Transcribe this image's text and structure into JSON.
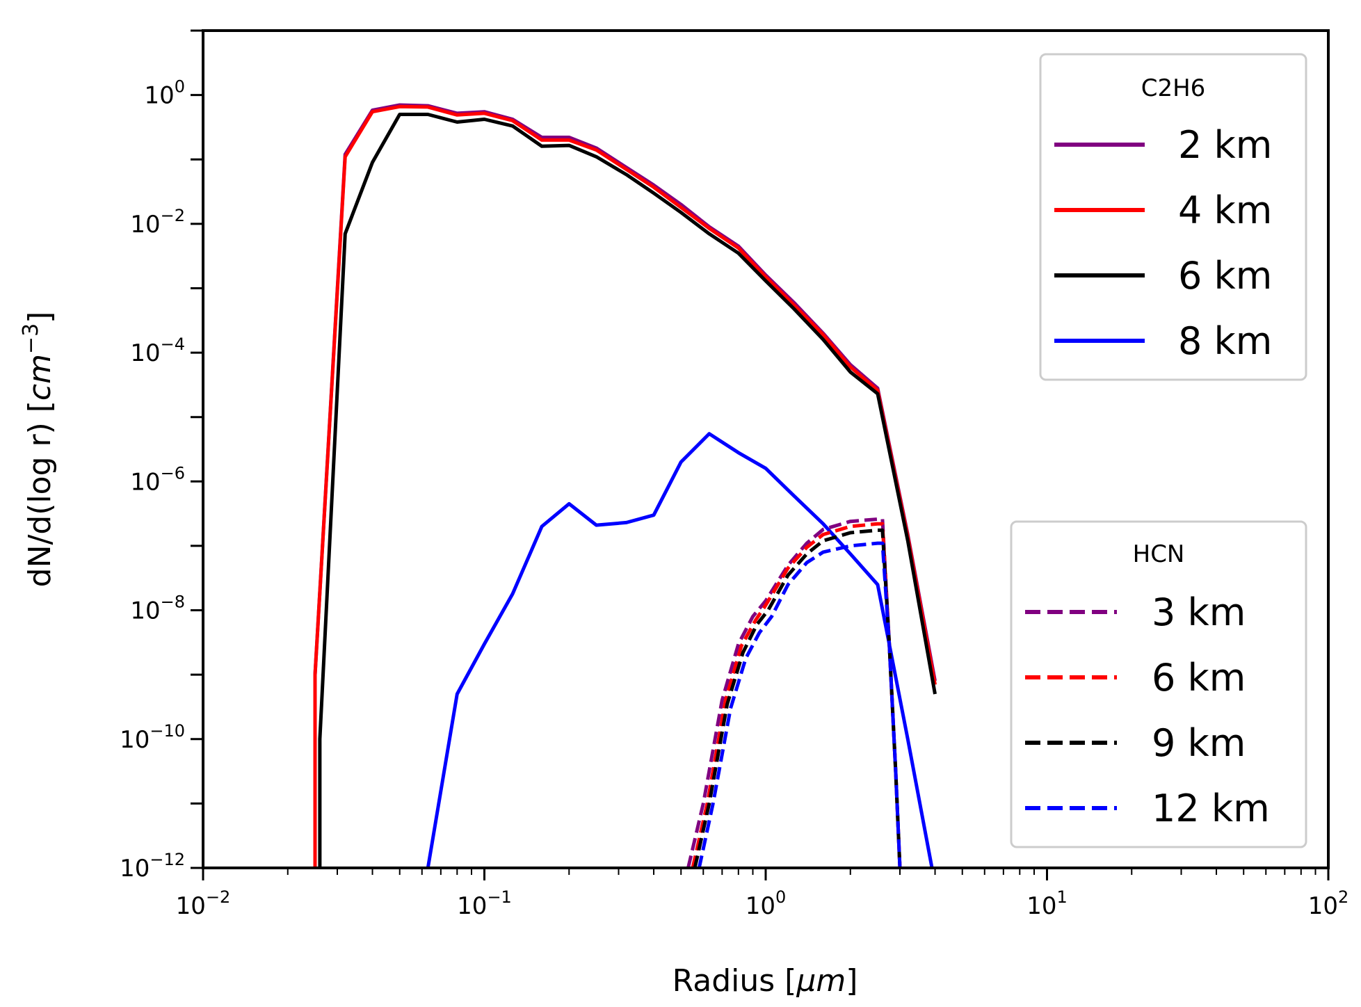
{
  "chart_data": {
    "type": "line",
    "xscale": "log",
    "yscale": "log",
    "xlim": [
      0.01,
      100
    ],
    "ylim": [
      1e-12,
      10
    ],
    "xlabel_prefix": "Radius [",
    "xlabel_unit": "μm",
    "xlabel_suffix": "]",
    "ylabel_prefix": "dN/d(log r) [",
    "ylabel_unit": "cm",
    "ylabel_exp": "−3",
    "ylabel_suffix": "]",
    "x_ticks": [
      {
        "value": 0.01,
        "base": "10",
        "exp": "−2"
      },
      {
        "value": 0.1,
        "base": "10",
        "exp": "−1"
      },
      {
        "value": 1,
        "base": "10",
        "exp": "0"
      },
      {
        "value": 10,
        "base": "10",
        "exp": "1"
      },
      {
        "value": 100,
        "base": "10",
        "exp": "2"
      }
    ],
    "y_ticks": [
      {
        "value": 1,
        "base": "10",
        "exp": "0"
      },
      {
        "value": 0.01,
        "base": "10",
        "exp": "−2"
      },
      {
        "value": 0.0001,
        "base": "10",
        "exp": "−4"
      },
      {
        "value": 1e-06,
        "base": "10",
        "exp": "−6"
      },
      {
        "value": 1e-08,
        "base": "10",
        "exp": "−8"
      },
      {
        "value": 1e-10,
        "base": "10",
        "exp": "−10"
      },
      {
        "value": 1e-12,
        "base": "10",
        "exp": "−12"
      }
    ],
    "legends": [
      {
        "title": "C2H6",
        "location": "upper right",
        "entries": [
          {
            "label": "2 km",
            "color": "#800080",
            "dash": "solid"
          },
          {
            "label": "4 km",
            "color": "#ff0000",
            "dash": "solid"
          },
          {
            "label": "6 km",
            "color": "#000000",
            "dash": "solid"
          },
          {
            "label": "8 km",
            "color": "#0000ff",
            "dash": "solid"
          }
        ]
      },
      {
        "title": "HCN",
        "location": "lower right",
        "entries": [
          {
            "label": "3 km",
            "color": "#800080",
            "dash": "dashed"
          },
          {
            "label": "6 km",
            "color": "#ff0000",
            "dash": "dashed"
          },
          {
            "label": "9 km",
            "color": "#000000",
            "dash": "dashed"
          },
          {
            "label": "12 km",
            "color": "#0000ff",
            "dash": "dashed"
          }
        ]
      }
    ],
    "series": [
      {
        "name": "C2H6 2 km",
        "color": "#800080",
        "dash": "solid",
        "width": 5,
        "x": [
          0.025,
          0.025,
          0.032,
          0.04,
          0.05,
          0.063,
          0.08,
          0.1,
          0.126,
          0.16,
          0.2,
          0.25,
          0.32,
          0.4,
          0.5,
          0.63,
          0.8,
          1.0,
          1.26,
          1.6,
          2.0,
          2.5,
          3.2,
          4.0
        ],
        "y": [
          1e-12,
          1e-09,
          0.12,
          0.58,
          0.7,
          0.68,
          0.52,
          0.55,
          0.42,
          0.22,
          0.22,
          0.15,
          0.075,
          0.04,
          0.02,
          0.009,
          0.0045,
          0.0016,
          0.0006,
          0.0002,
          6.5e-05,
          2.8e-05,
          1.5e-07,
          8e-10
        ]
      },
      {
        "name": "C2H6 4 km",
        "color": "#ff0000",
        "dash": "solid",
        "width": 5,
        "x": [
          0.025,
          0.025,
          0.032,
          0.04,
          0.05,
          0.063,
          0.08,
          0.1,
          0.126,
          0.16,
          0.2,
          0.25,
          0.32,
          0.4,
          0.5,
          0.63,
          0.8,
          1.0,
          1.26,
          1.6,
          2.0,
          2.5,
          3.2,
          4.0
        ],
        "y": [
          1e-12,
          1e-09,
          0.11,
          0.55,
          0.66,
          0.65,
          0.49,
          0.52,
          0.4,
          0.2,
          0.2,
          0.14,
          0.07,
          0.037,
          0.018,
          0.0085,
          0.0042,
          0.0015,
          0.00055,
          0.00019,
          6e-05,
          2.6e-05,
          1.4e-07,
          7e-10
        ]
      },
      {
        "name": "C2H6 6 km",
        "color": "#000000",
        "dash": "solid",
        "width": 5,
        "x": [
          0.026,
          0.026,
          0.032,
          0.04,
          0.05,
          0.063,
          0.08,
          0.1,
          0.126,
          0.16,
          0.2,
          0.25,
          0.32,
          0.4,
          0.5,
          0.63,
          0.8,
          1.0,
          1.26,
          1.6,
          2.0,
          2.5,
          3.2,
          4.0
        ],
        "y": [
          1e-12,
          1e-10,
          0.007,
          0.09,
          0.5,
          0.5,
          0.38,
          0.42,
          0.33,
          0.16,
          0.165,
          0.11,
          0.058,
          0.03,
          0.015,
          0.007,
          0.0035,
          0.0013,
          0.00048,
          0.00016,
          5e-05,
          2.3e-05,
          1.2e-07,
          5e-10
        ]
      },
      {
        "name": "C2H6 8 km",
        "color": "#0000ff",
        "dash": "solid",
        "width": 5,
        "x": [
          0.063,
          0.08,
          0.1,
          0.126,
          0.16,
          0.2,
          0.25,
          0.32,
          0.4,
          0.5,
          0.63,
          0.8,
          1.0,
          1.26,
          1.6,
          2.0,
          2.5,
          3.2,
          3.9
        ],
        "y": [
          1e-12,
          5e-10,
          3e-09,
          1.8e-08,
          2e-07,
          4.5e-07,
          2.1e-07,
          2.3e-07,
          3e-07,
          2e-06,
          5.5e-06,
          2.8e-06,
          1.6e-06,
          6e-07,
          2.2e-07,
          7.5e-08,
          2.5e-08,
          1e-10,
          1e-12
        ]
      },
      {
        "name": "HCN 3 km",
        "color": "#800080",
        "dash": "dashed",
        "width": 5,
        "x": [
          0.53,
          0.6,
          0.7,
          0.8,
          0.9,
          1.0,
          1.2,
          1.4,
          1.6,
          2.0,
          2.5,
          2.6,
          2.75,
          2.9,
          3.0
        ],
        "y": [
          1e-12,
          1e-11,
          4e-10,
          3e-09,
          8e-09,
          1.4e-08,
          5e-08,
          1.1e-07,
          1.8e-07,
          2.4e-07,
          2.6e-07,
          2.6e-07,
          3e-09,
          3e-11,
          1e-12
        ]
      },
      {
        "name": "HCN 6 km",
        "color": "#ff0000",
        "dash": "dashed",
        "width": 5,
        "x": [
          0.55,
          0.62,
          0.72,
          0.82,
          0.92,
          1.0,
          1.2,
          1.4,
          1.6,
          2.0,
          2.5,
          2.6,
          2.75,
          2.9,
          3.0
        ],
        "y": [
          1e-12,
          1e-11,
          4e-10,
          2.8e-09,
          7e-09,
          1.2e-08,
          4.5e-08,
          9.5e-08,
          1.5e-07,
          2e-07,
          2.2e-07,
          2.2e-07,
          3e-09,
          3e-11,
          1e-12
        ]
      },
      {
        "name": "HCN 9 km",
        "color": "#000000",
        "dash": "dashed",
        "width": 5,
        "x": [
          0.56,
          0.63,
          0.73,
          0.83,
          0.93,
          1.02,
          1.2,
          1.4,
          1.6,
          2.0,
          2.5,
          2.6,
          2.75,
          2.9,
          3.0
        ],
        "y": [
          1e-12,
          1e-11,
          3.5e-10,
          2.2e-09,
          6e-09,
          1e-08,
          3.5e-08,
          7.5e-08,
          1.2e-07,
          1.6e-07,
          1.75e-07,
          1.75e-07,
          3e-09,
          3e-11,
          1e-12
        ]
      },
      {
        "name": "HCN 12 km",
        "color": "#0000ff",
        "dash": "dashed",
        "width": 5,
        "x": [
          0.58,
          0.65,
          0.75,
          0.85,
          0.95,
          1.05,
          1.2,
          1.4,
          1.6,
          2.0,
          2.5,
          2.6,
          2.75,
          2.9,
          3.0
        ],
        "y": [
          1e-12,
          1e-11,
          3e-10,
          1.8e-09,
          4.5e-09,
          8e-09,
          2.5e-08,
          5.5e-08,
          8e-08,
          1e-07,
          1.1e-07,
          1.1e-07,
          3e-09,
          3e-11,
          1e-12
        ]
      }
    ]
  }
}
